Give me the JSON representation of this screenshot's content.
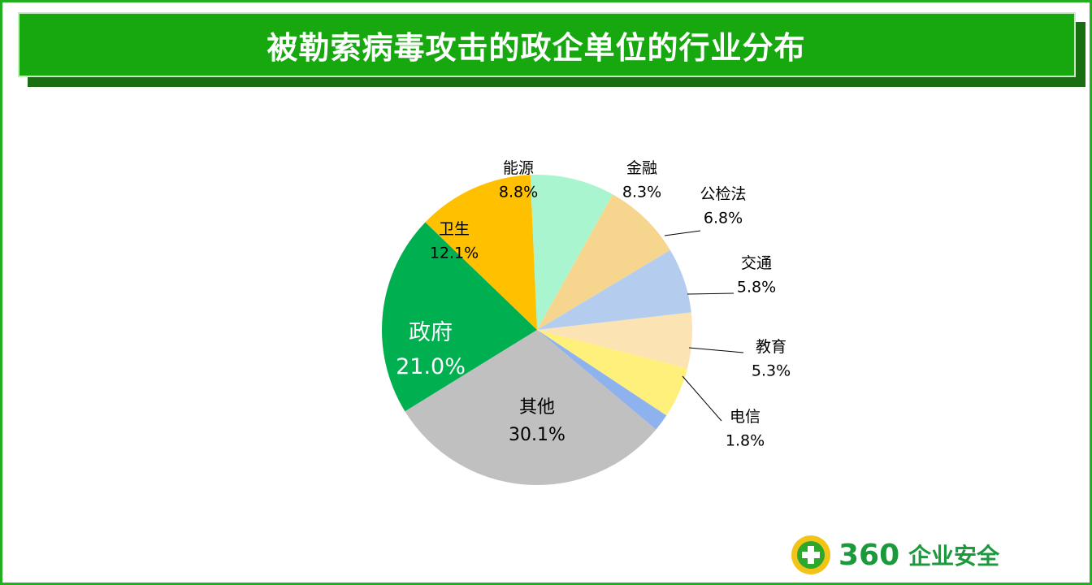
{
  "header": {
    "title": "被勒索病毒攻击的政企单位的行业分布"
  },
  "logo": {
    "brand_number": "360",
    "brand_text": "企业安全"
  },
  "chart_data": {
    "type": "pie",
    "title": "被勒索病毒攻击的政企单位的行业分布",
    "legend": "none",
    "slices": [
      {
        "label": "能源",
        "value": 8.8,
        "value_label": "8.8%",
        "color": "#a9f5cf"
      },
      {
        "label": "金融",
        "value": 8.3,
        "value_label": "8.3%",
        "color": "#f6d68f"
      },
      {
        "label": "公检法",
        "value": 6.8,
        "value_label": "6.8%",
        "color": "#b4cdee"
      },
      {
        "label": "交通",
        "value": 5.8,
        "value_label": "5.8%",
        "color": "#fbe3b3"
      },
      {
        "label": "教育",
        "value": 5.3,
        "value_label": "5.3%",
        "color": "#fff07c"
      },
      {
        "label": "电信",
        "value": 1.8,
        "value_label": "1.8%",
        "color": "#8eb2ee"
      },
      {
        "label": "其他",
        "value": 30.1,
        "value_label": "30.1%",
        "color": "#c0c0c0"
      },
      {
        "label": "政府",
        "value": 21.0,
        "value_label": "21.0%",
        "color": "#00b050"
      },
      {
        "label": "卫生",
        "value": 12.1,
        "value_label": "12.1%",
        "color": "#ffc000"
      }
    ]
  }
}
